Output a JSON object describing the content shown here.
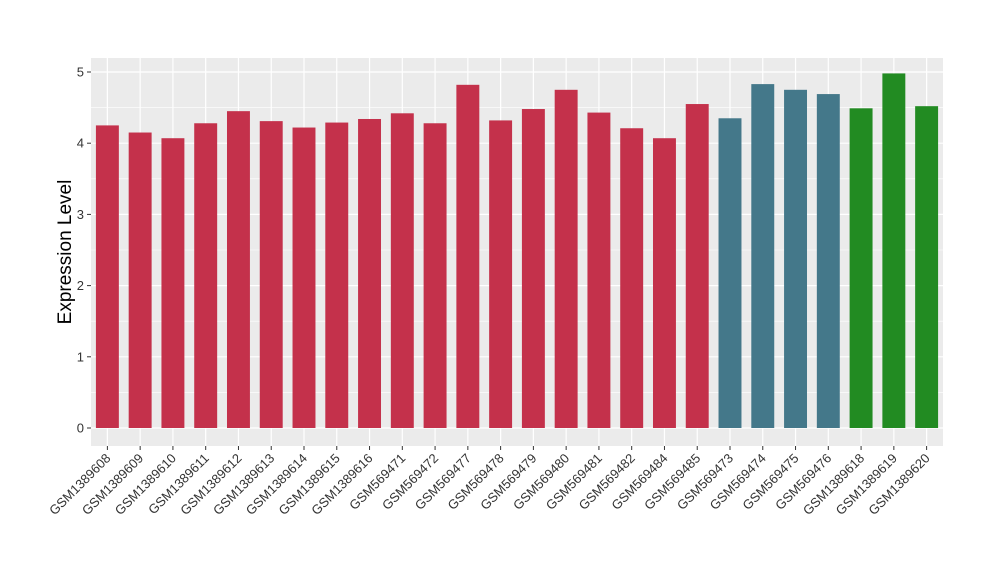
{
  "chart_data": {
    "type": "bar",
    "title": "",
    "xlabel": "",
    "ylabel": "Expression Level",
    "ylim": [
      0,
      5.2
    ],
    "yticks": [
      0,
      1,
      2,
      3,
      4,
      5
    ],
    "grid": true,
    "legend": "none",
    "categories": [
      "GSM1389608",
      "GSM1389609",
      "GSM1389610",
      "GSM1389611",
      "GSM1389612",
      "GSM1389613",
      "GSM1389614",
      "GSM1389615",
      "GSM1389616",
      "GSM569471",
      "GSM569472",
      "GSM569477",
      "GSM569478",
      "GSM569479",
      "GSM569480",
      "GSM569481",
      "GSM569482",
      "GSM569484",
      "GSM569485",
      "GSM569473",
      "GSM569474",
      "GSM569475",
      "GSM569476",
      "GSM1389618",
      "GSM1389619",
      "GSM1389620"
    ],
    "values": [
      4.25,
      4.15,
      4.07,
      4.28,
      4.45,
      4.31,
      4.22,
      4.29,
      4.34,
      4.42,
      4.28,
      4.82,
      4.32,
      4.48,
      4.75,
      4.43,
      4.21,
      4.07,
      4.55,
      4.35,
      4.83,
      4.75,
      4.69,
      4.49,
      4.98,
      4.52
    ],
    "groups": [
      "g1",
      "g1",
      "g1",
      "g1",
      "g1",
      "g1",
      "g1",
      "g1",
      "g1",
      "g1",
      "g1",
      "g1",
      "g1",
      "g1",
      "g1",
      "g1",
      "g1",
      "g1",
      "g1",
      "g2",
      "g2",
      "g2",
      "g2",
      "g3",
      "g3",
      "g3"
    ],
    "colors": {
      "g1": "#C4314B",
      "g2": "#44788A",
      "g3": "#228B22",
      "panel": "#EBEBEB",
      "grid": "#FFFFFF"
    }
  }
}
